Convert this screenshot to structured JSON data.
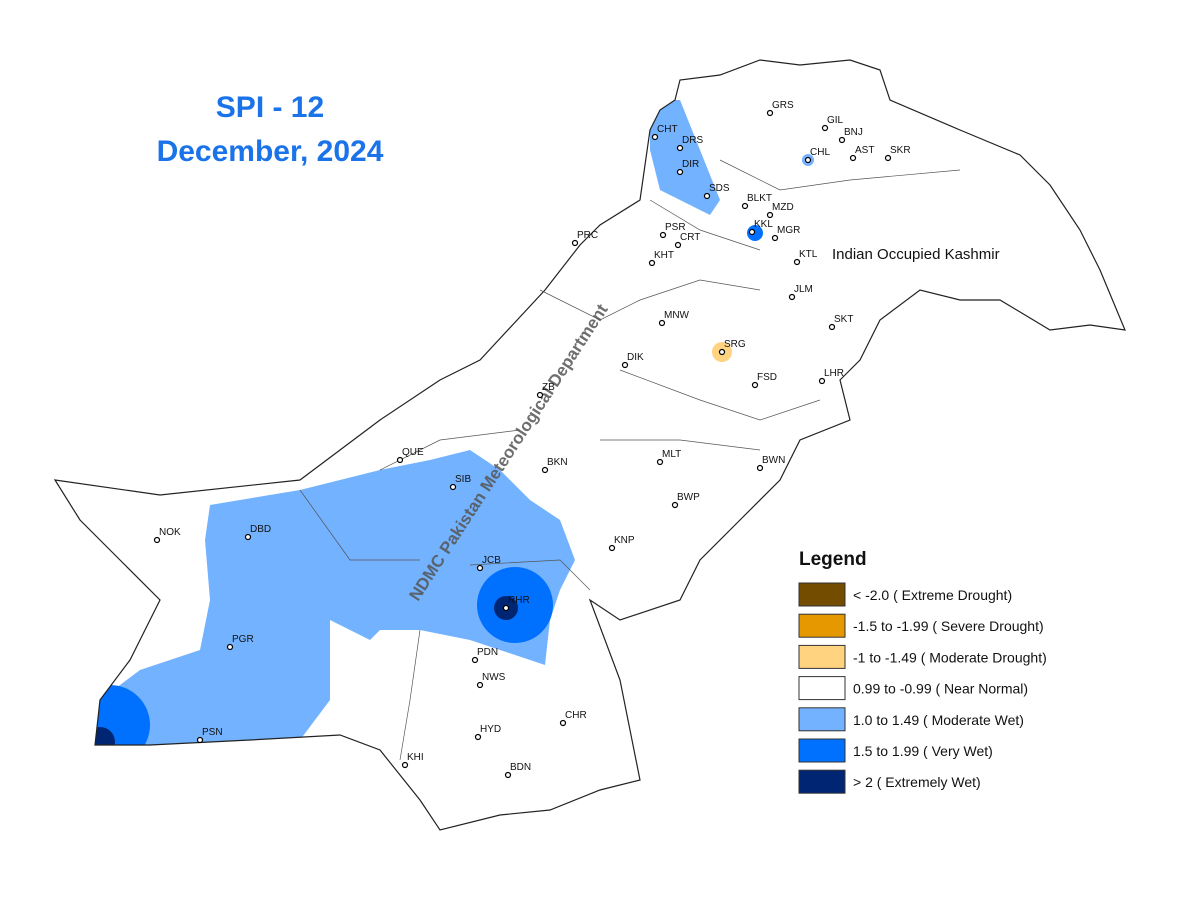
{
  "title": {
    "line1": "SPI - 12",
    "line2": "December, 2024"
  },
  "watermark": "NDMC Pakistan Meteorological Department",
  "region_label": "Indian Occupied Kashmir",
  "legend": {
    "title": "Legend",
    "items": [
      {
        "label": "< -2.0 ( Extreme Drought)",
        "color": "#734c00"
      },
      {
        "label": "-1.5 to -1.99 ( Severe Drought)",
        "color": "#e69800"
      },
      {
        "label": "-1 to -1.49 ( Moderate Drought)",
        "color": "#ffd37f"
      },
      {
        "label": "0.99 to -0.99 ( Near Normal)",
        "color": "#ffffff"
      },
      {
        "label": "1.0 to 1.49 ( Moderate Wet)",
        "color": "#73b2ff"
      },
      {
        "label": "1.5 to 1.99 ( Very Wet)",
        "color": "#0070ff"
      },
      {
        "label": "> 2 ( Extremely Wet)",
        "color": "#002673"
      }
    ]
  },
  "stations": [
    "GRS",
    "GIL",
    "BNJ",
    "CHL",
    "AST",
    "SKR",
    "CHT",
    "DRS",
    "DIR",
    "SDS",
    "BLKT",
    "KKL",
    "MZD",
    "MGR",
    "PRC",
    "PSR",
    "CRT",
    "KHT",
    "KTL",
    "JLM",
    "SKT",
    "MNW",
    "SRG",
    "DIK",
    "FSD",
    "LHR",
    "ZB",
    "MLT",
    "BWN",
    "QUE",
    "SIB",
    "BKN",
    "BWP",
    "NOK",
    "DBD",
    "KNP",
    "JCB",
    "RHR",
    "PGR",
    "PDN",
    "NWS",
    "CHR",
    "HYD",
    "KHI",
    "BDN",
    "PSN"
  ]
}
